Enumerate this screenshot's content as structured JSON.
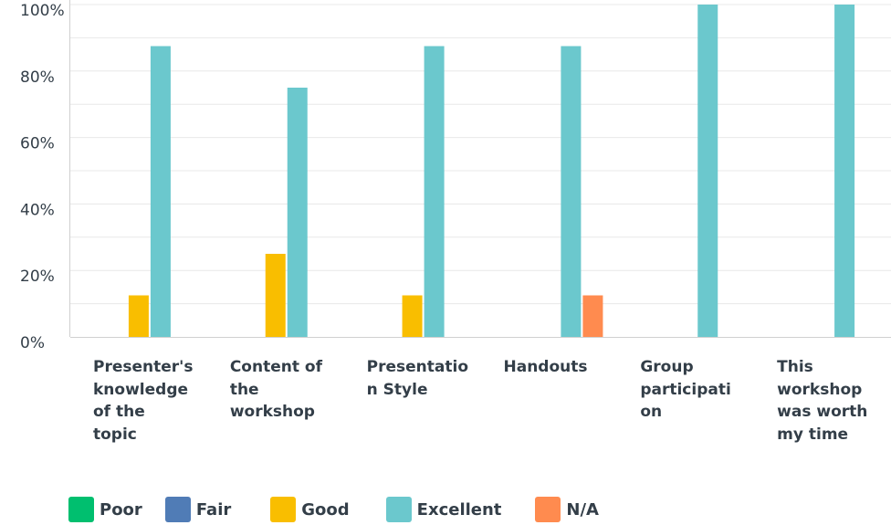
{
  "chart_data": {
    "type": "bar",
    "title": "",
    "xlabel": "",
    "ylabel": "",
    "ylim": [
      0,
      100
    ],
    "y_ticks": [
      "0%",
      "20%",
      "40%",
      "60%",
      "80%",
      "100%"
    ],
    "y_tick_values": [
      0,
      20,
      40,
      60,
      80,
      100
    ],
    "grid": true,
    "legend_position": "bottom-left",
    "categories": [
      "Presenter's\nknowledge\nof the\ntopic",
      "Content of\nthe\nworkshop",
      "Presentatio\nn Style",
      "Handouts",
      "Group\nparticipati\non",
      "This\nworkshop\nwas worth\nmy time"
    ],
    "series": [
      {
        "name": "Poor",
        "color": "#00bf6f",
        "values": [
          0,
          0,
          0,
          0,
          0,
          0
        ]
      },
      {
        "name": "Fair",
        "color": "#507cb6",
        "values": [
          0,
          0,
          0,
          0,
          0,
          0
        ]
      },
      {
        "name": "Good",
        "color": "#f9be00",
        "values": [
          12.5,
          25,
          12.5,
          0,
          0,
          0
        ]
      },
      {
        "name": "Excellent",
        "color": "#6bc8cd",
        "values": [
          87.5,
          75,
          87.5,
          87.5,
          100,
          100
        ]
      },
      {
        "name": "N/A",
        "color": "#ff8b4f",
        "values": [
          0,
          0,
          0,
          12.5,
          0,
          0
        ]
      }
    ]
  }
}
